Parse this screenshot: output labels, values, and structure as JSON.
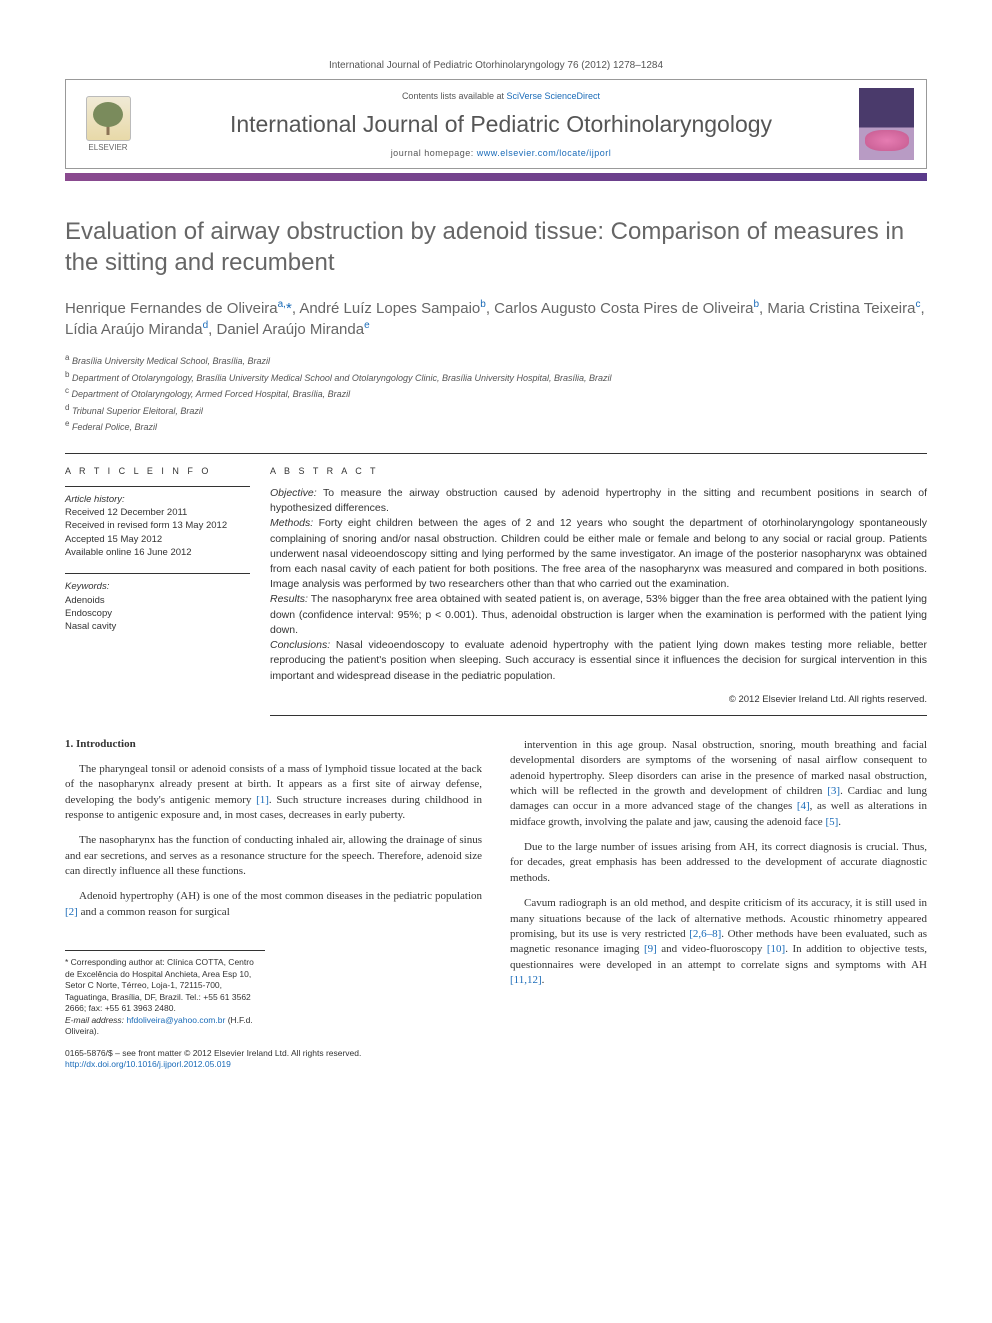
{
  "journal_ref": "International Journal of Pediatric Otorhinolaryngology 76 (2012) 1278–1284",
  "header": {
    "contents_pre": "Contents lists available at ",
    "contents_link": "SciVerse ScienceDirect",
    "journal_name": "International Journal of Pediatric Otorhinolaryngology",
    "homepage_pre": "journal homepage: ",
    "homepage_link": "www.elsevier.com/locate/ijporl",
    "publisher": "ELSEVIER"
  },
  "title": "Evaluation of airway obstruction by adenoid tissue: Comparison of measures in the sitting and recumbent",
  "authors_html": "Henrique Fernandes de Oliveira<sup>a,</sup><span class='corr-star'>*</span>, André Luíz Lopes Sampaio<sup>b</sup>, Carlos Augusto Costa Pires de Oliveira<sup>b</sup>, Maria Cristina Teixeira<sup>c</sup>, Lídia Araújo Miranda<sup>d</sup>, Daniel Araújo Miranda<sup>e</sup>",
  "affiliations": [
    {
      "sup": "a",
      "text": "Brasília University Medical School, Brasília, Brazil"
    },
    {
      "sup": "b",
      "text": "Department of Otolaryngology, Brasília University Medical School and Otolaryngology Clinic, Brasília University Hospital, Brasília, Brazil"
    },
    {
      "sup": "c",
      "text": "Department of Otolaryngology, Armed Forced Hospital, Brasília, Brazil"
    },
    {
      "sup": "d",
      "text": "Tribunal Superior Eleitoral, Brazil"
    },
    {
      "sup": "e",
      "text": "Federal Police, Brazil"
    }
  ],
  "article_info": {
    "label": "A R T I C L E   I N F O",
    "history_label": "Article history:",
    "history": [
      "Received 12 December 2011",
      "Received in revised form 13 May 2012",
      "Accepted 15 May 2012",
      "Available online 16 June 2012"
    ],
    "keywords_label": "Keywords:",
    "keywords": [
      "Adenoids",
      "Endoscopy",
      "Nasal cavity"
    ]
  },
  "abstract": {
    "label": "A B S T R A C T",
    "objective_label": "Objective:",
    "objective": "To measure the airway obstruction caused by adenoid hypertrophy in the sitting and recumbent positions in search of hypothesized differences.",
    "methods_label": "Methods:",
    "methods": "Forty eight children between the ages of 2 and 12 years who sought the department of otorhinolaryngology spontaneously complaining of snoring and/or nasal obstruction. Children could be either male or female and belong to any social or racial group. Patients underwent nasal videoendoscopy sitting and lying performed by the same investigator. An image of the posterior nasopharynx was obtained from each nasal cavity of each patient for both positions. The free area of the nasopharynx was measured and compared in both positions. Image analysis was performed by two researchers other than that who carried out the examination.",
    "results_label": "Results:",
    "results": "The nasopharynx free area obtained with seated patient is, on average, 53% bigger than the free area obtained with the patient lying down (confidence interval: 95%; p < 0.001). Thus, adenoidal obstruction is larger when the examination is performed with the patient lying down.",
    "conclusions_label": "Conclusions:",
    "conclusions": "Nasal videoendoscopy to evaluate adenoid hypertrophy with the patient lying down makes testing more reliable, better reproducing the patient's position when sleeping. Such accuracy is essential since it influences the decision for surgical intervention in this important and widespread disease in the pediatric population.",
    "copyright": "© 2012 Elsevier Ireland Ltd. All rights reserved."
  },
  "body": {
    "section1_head": "1. Introduction",
    "col1": [
      "The pharyngeal tonsil or adenoid consists of a mass of lymphoid tissue located at the back of the nasopharynx already present at birth. It appears as a first site of airway defense, developing the body's antigenic memory <a href='#'>[1]</a>. Such structure increases during childhood in response to antigenic exposure and, in most cases, decreases in early puberty.",
      "The nasopharynx has the function of conducting inhaled air, allowing the drainage of sinus and ear secretions, and serves as a resonance structure for the speech. Therefore, adenoid size can directly influence all these functions.",
      "Adenoid hypertrophy (AH) is one of the most common diseases in the pediatric population <a href='#'>[2]</a> and a common reason for surgical"
    ],
    "col2": [
      "intervention in this age group. Nasal obstruction, snoring, mouth breathing and facial developmental disorders are symptoms of the worsening of nasal airflow consequent to adenoid hypertrophy. Sleep disorders can arise in the presence of marked nasal obstruction, which will be reflected in the growth and development of children <a href='#'>[3]</a>. Cardiac and lung damages can occur in a more advanced stage of the changes <a href='#'>[4]</a>, as well as alterations in midface growth, involving the palate and jaw, causing the adenoid face <a href='#'>[5]</a>.",
      "Due to the large number of issues arising from AH, its correct diagnosis is crucial. Thus, for decades, great emphasis has been addressed to the development of accurate diagnostic methods.",
      "Cavum radiograph is an old method, and despite criticism of its accuracy, it is still used in many situations because of the lack of alternative methods. Acoustic rhinometry appeared promising, but its use is very restricted <a href='#'>[2,6–8]</a>. Other methods have been evaluated, such as magnetic resonance imaging <a href='#'>[9]</a> and video-fluoroscopy <a href='#'>[10]</a>. In addition to objective tests, questionnaires were developed in an attempt to correlate signs and symptoms with AH <a href='#'>[11,12]</a>."
    ]
  },
  "footnote": {
    "corr": "* Corresponding author at: Clínica COTTA, Centro de Excelência do Hospital Anchieta, Area Esp 10, Setor C Norte, Térreo, Loja-1, 72115-700, Taguatinga, Brasília, DF, Brazil. Tel.: +55 61 3562 2666; fax: +55 61 3963 2480.",
    "email_label": "E-mail address:",
    "email": "hfdoliveira@yahoo.com.br",
    "email_suffix": "(H.F.d. Oliveira)."
  },
  "footer": {
    "line1": "0165-5876/$ – see front matter © 2012 Elsevier Ireland Ltd. All rights reserved.",
    "doi": "http://dx.doi.org/10.1016/j.ijporl.2012.05.019"
  }
}
